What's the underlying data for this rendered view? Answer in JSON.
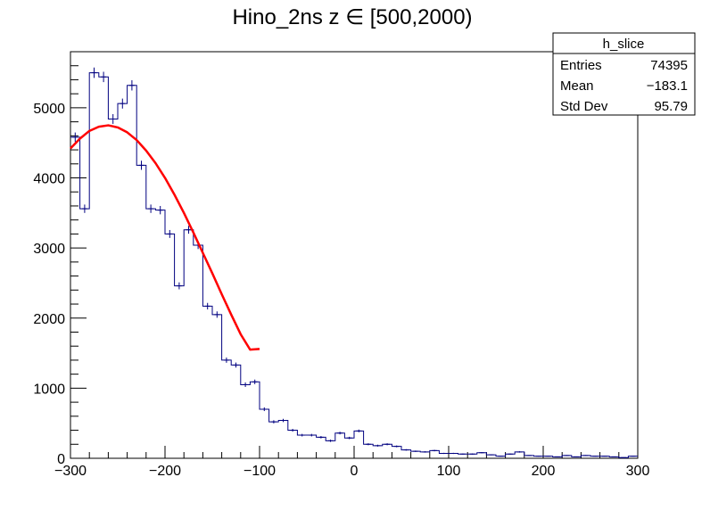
{
  "chart_data": {
    "type": "histogram",
    "title": "Hino_2ns z ∈ [500,2000)",
    "xlabel": "",
    "ylabel": "",
    "xlim": [
      -300,
      300
    ],
    "ylim": [
      0,
      5800
    ],
    "x_ticks": [
      -300,
      -200,
      -100,
      0,
      100,
      200,
      300
    ],
    "x_tick_labels": [
      "−300",
      "−200",
      "−100",
      "0",
      "100",
      "200",
      "300"
    ],
    "y_ticks": [
      0,
      1000,
      2000,
      3000,
      4000,
      5000
    ],
    "y_tick_labels": [
      "0",
      "1000",
      "2000",
      "3000",
      "4000",
      "5000"
    ],
    "bin_width": 10,
    "series": [
      {
        "kind": "histogram",
        "color": "#000080",
        "bin_edges_start": -300,
        "values": [
          4580,
          3560,
          5500,
          5440,
          4840,
          5060,
          5320,
          4180,
          3560,
          3540,
          3200,
          2460,
          3260,
          3040,
          2170,
          2050,
          1400,
          1330,
          1050,
          1090,
          700,
          520,
          540,
          400,
          330,
          330,
          300,
          250,
          360,
          290,
          390,
          200,
          180,
          200,
          170,
          120,
          100,
          90,
          110,
          70,
          70,
          60,
          60,
          80,
          50,
          30,
          60,
          90,
          40,
          30,
          30,
          20,
          40,
          20,
          40,
          30,
          30,
          20,
          10,
          30
        ]
      },
      {
        "kind": "fit",
        "color": "#ff0000",
        "x": [
          -300,
          -290,
          -280,
          -270,
          -260,
          -250,
          -240,
          -230,
          -220,
          -210,
          -200,
          -190,
          -180,
          -170,
          -160,
          -150,
          -140,
          -130,
          -120,
          -110,
          -100
        ],
        "y": [
          4420,
          4560,
          4670,
          4730,
          4750,
          4720,
          4650,
          4540,
          4390,
          4210,
          4000,
          3760,
          3500,
          3220,
          2930,
          2640,
          2340,
          2050,
          1770,
          1550,
          1560
        ]
      }
    ],
    "stats_box": {
      "name": "h_slice",
      "rows": [
        {
          "label": "Entries",
          "value": "74395"
        },
        {
          "label": "Mean",
          "value": "−183.1"
        },
        {
          "label": "Std Dev",
          "value": "95.79"
        }
      ]
    }
  }
}
